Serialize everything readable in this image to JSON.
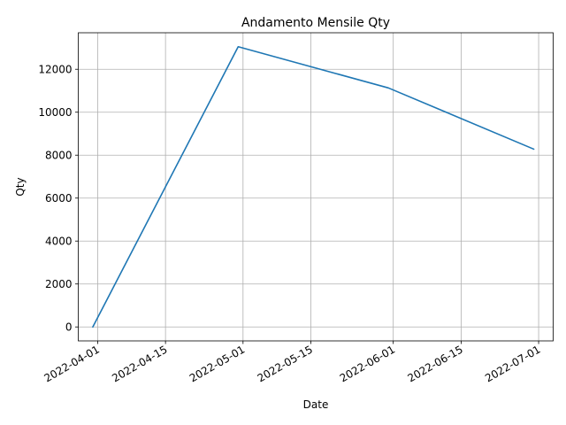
{
  "chart_data": {
    "type": "line",
    "title": "Andamento Mensile Qty",
    "xlabel": "Date",
    "ylabel": "Qty",
    "x": [
      "2022-03-31",
      "2022-04-30",
      "2022-05-31",
      "2022-06-30"
    ],
    "series": [
      {
        "values": [
          0,
          13050,
          11130,
          8280
        ],
        "color": "#1f77b4"
      }
    ],
    "xlim": [
      "2022-03-28",
      "2022-07-04"
    ],
    "ylim": [
      -650,
      13700
    ],
    "x_ticks": [
      "2022-04-01",
      "2022-04-15",
      "2022-05-01",
      "2022-05-15",
      "2022-06-01",
      "2022-06-15",
      "2022-07-01"
    ],
    "y_ticks": [
      0,
      2000,
      4000,
      6000,
      8000,
      10000,
      12000
    ],
    "grid": true
  }
}
